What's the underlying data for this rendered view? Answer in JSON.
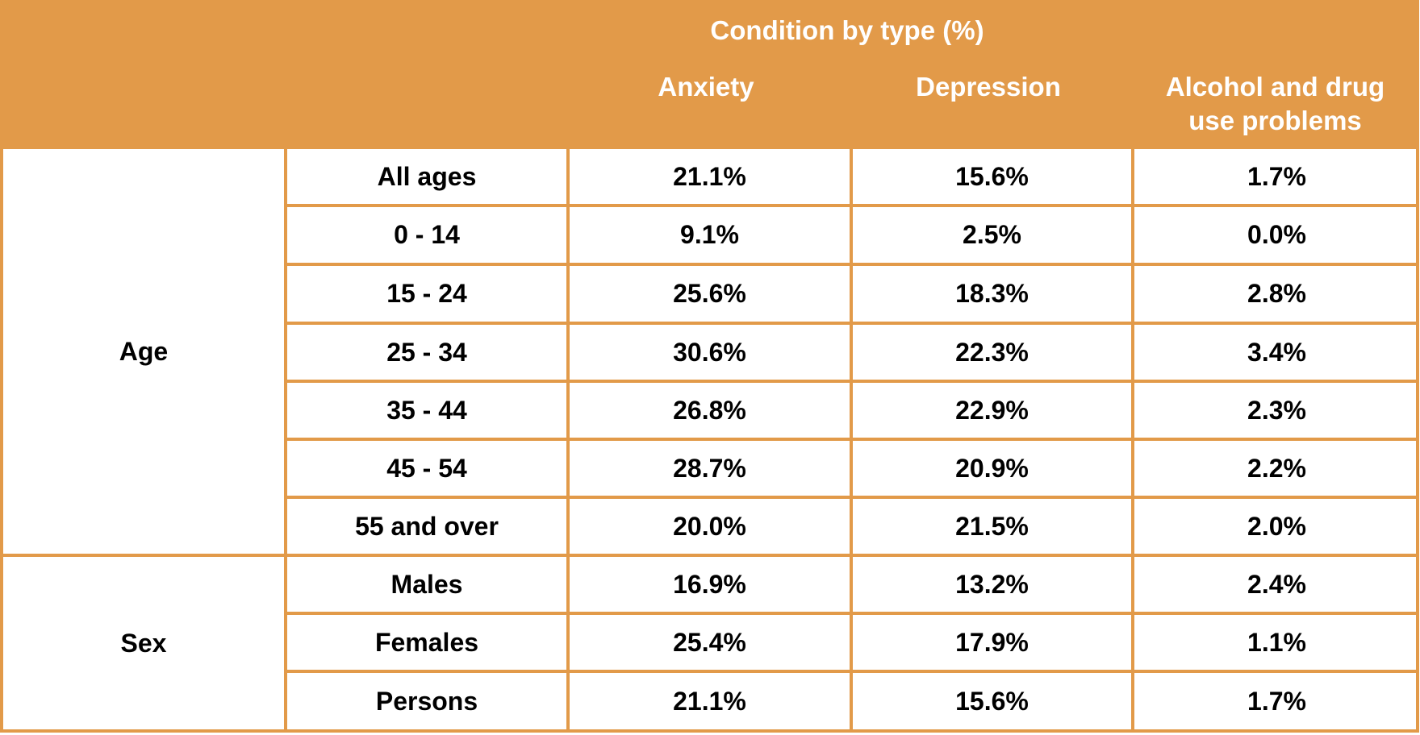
{
  "colors": {
    "header_background": "#e29a49",
    "grid_line": "#e29a49",
    "header_text": "#ffffff",
    "cell_text": "#000000",
    "cell_background": "#ffffff"
  },
  "chart_data": {
    "type": "table",
    "group_header": "Condition by type (%)",
    "columns": [
      "Anxiety",
      "Depression",
      "Alcohol and drug use problems"
    ],
    "column_lines": [
      [
        "Anxiety"
      ],
      [
        "Depression"
      ],
      [
        "Alcohol and drug",
        "use problems"
      ]
    ],
    "groups": [
      {
        "label": "Age",
        "rows": [
          {
            "label": "All ages",
            "values": [
              "21.1%",
              "15.6%",
              "1.7%"
            ]
          },
          {
            "label": "0 - 14",
            "values": [
              "9.1%",
              "2.5%",
              "0.0%"
            ]
          },
          {
            "label": "15 - 24",
            "values": [
              "25.6%",
              "18.3%",
              "2.8%"
            ]
          },
          {
            "label": "25 - 34",
            "values": [
              "30.6%",
              "22.3%",
              "3.4%"
            ]
          },
          {
            "label": "35 - 44",
            "values": [
              "26.8%",
              "22.9%",
              "2.3%"
            ]
          },
          {
            "label": "45 - 54",
            "values": [
              "28.7%",
              "20.9%",
              "2.2%"
            ]
          },
          {
            "label": "55 and over",
            "values": [
              "20.0%",
              "21.5%",
              "2.0%"
            ]
          }
        ]
      },
      {
        "label": "Sex",
        "rows": [
          {
            "label": "Males",
            "values": [
              "16.9%",
              "13.2%",
              "2.4%"
            ]
          },
          {
            "label": "Females",
            "values": [
              "25.4%",
              "17.9%",
              "1.1%"
            ]
          },
          {
            "label": "Persons",
            "values": [
              "21.1%",
              "15.6%",
              "1.7%"
            ]
          }
        ]
      }
    ]
  }
}
